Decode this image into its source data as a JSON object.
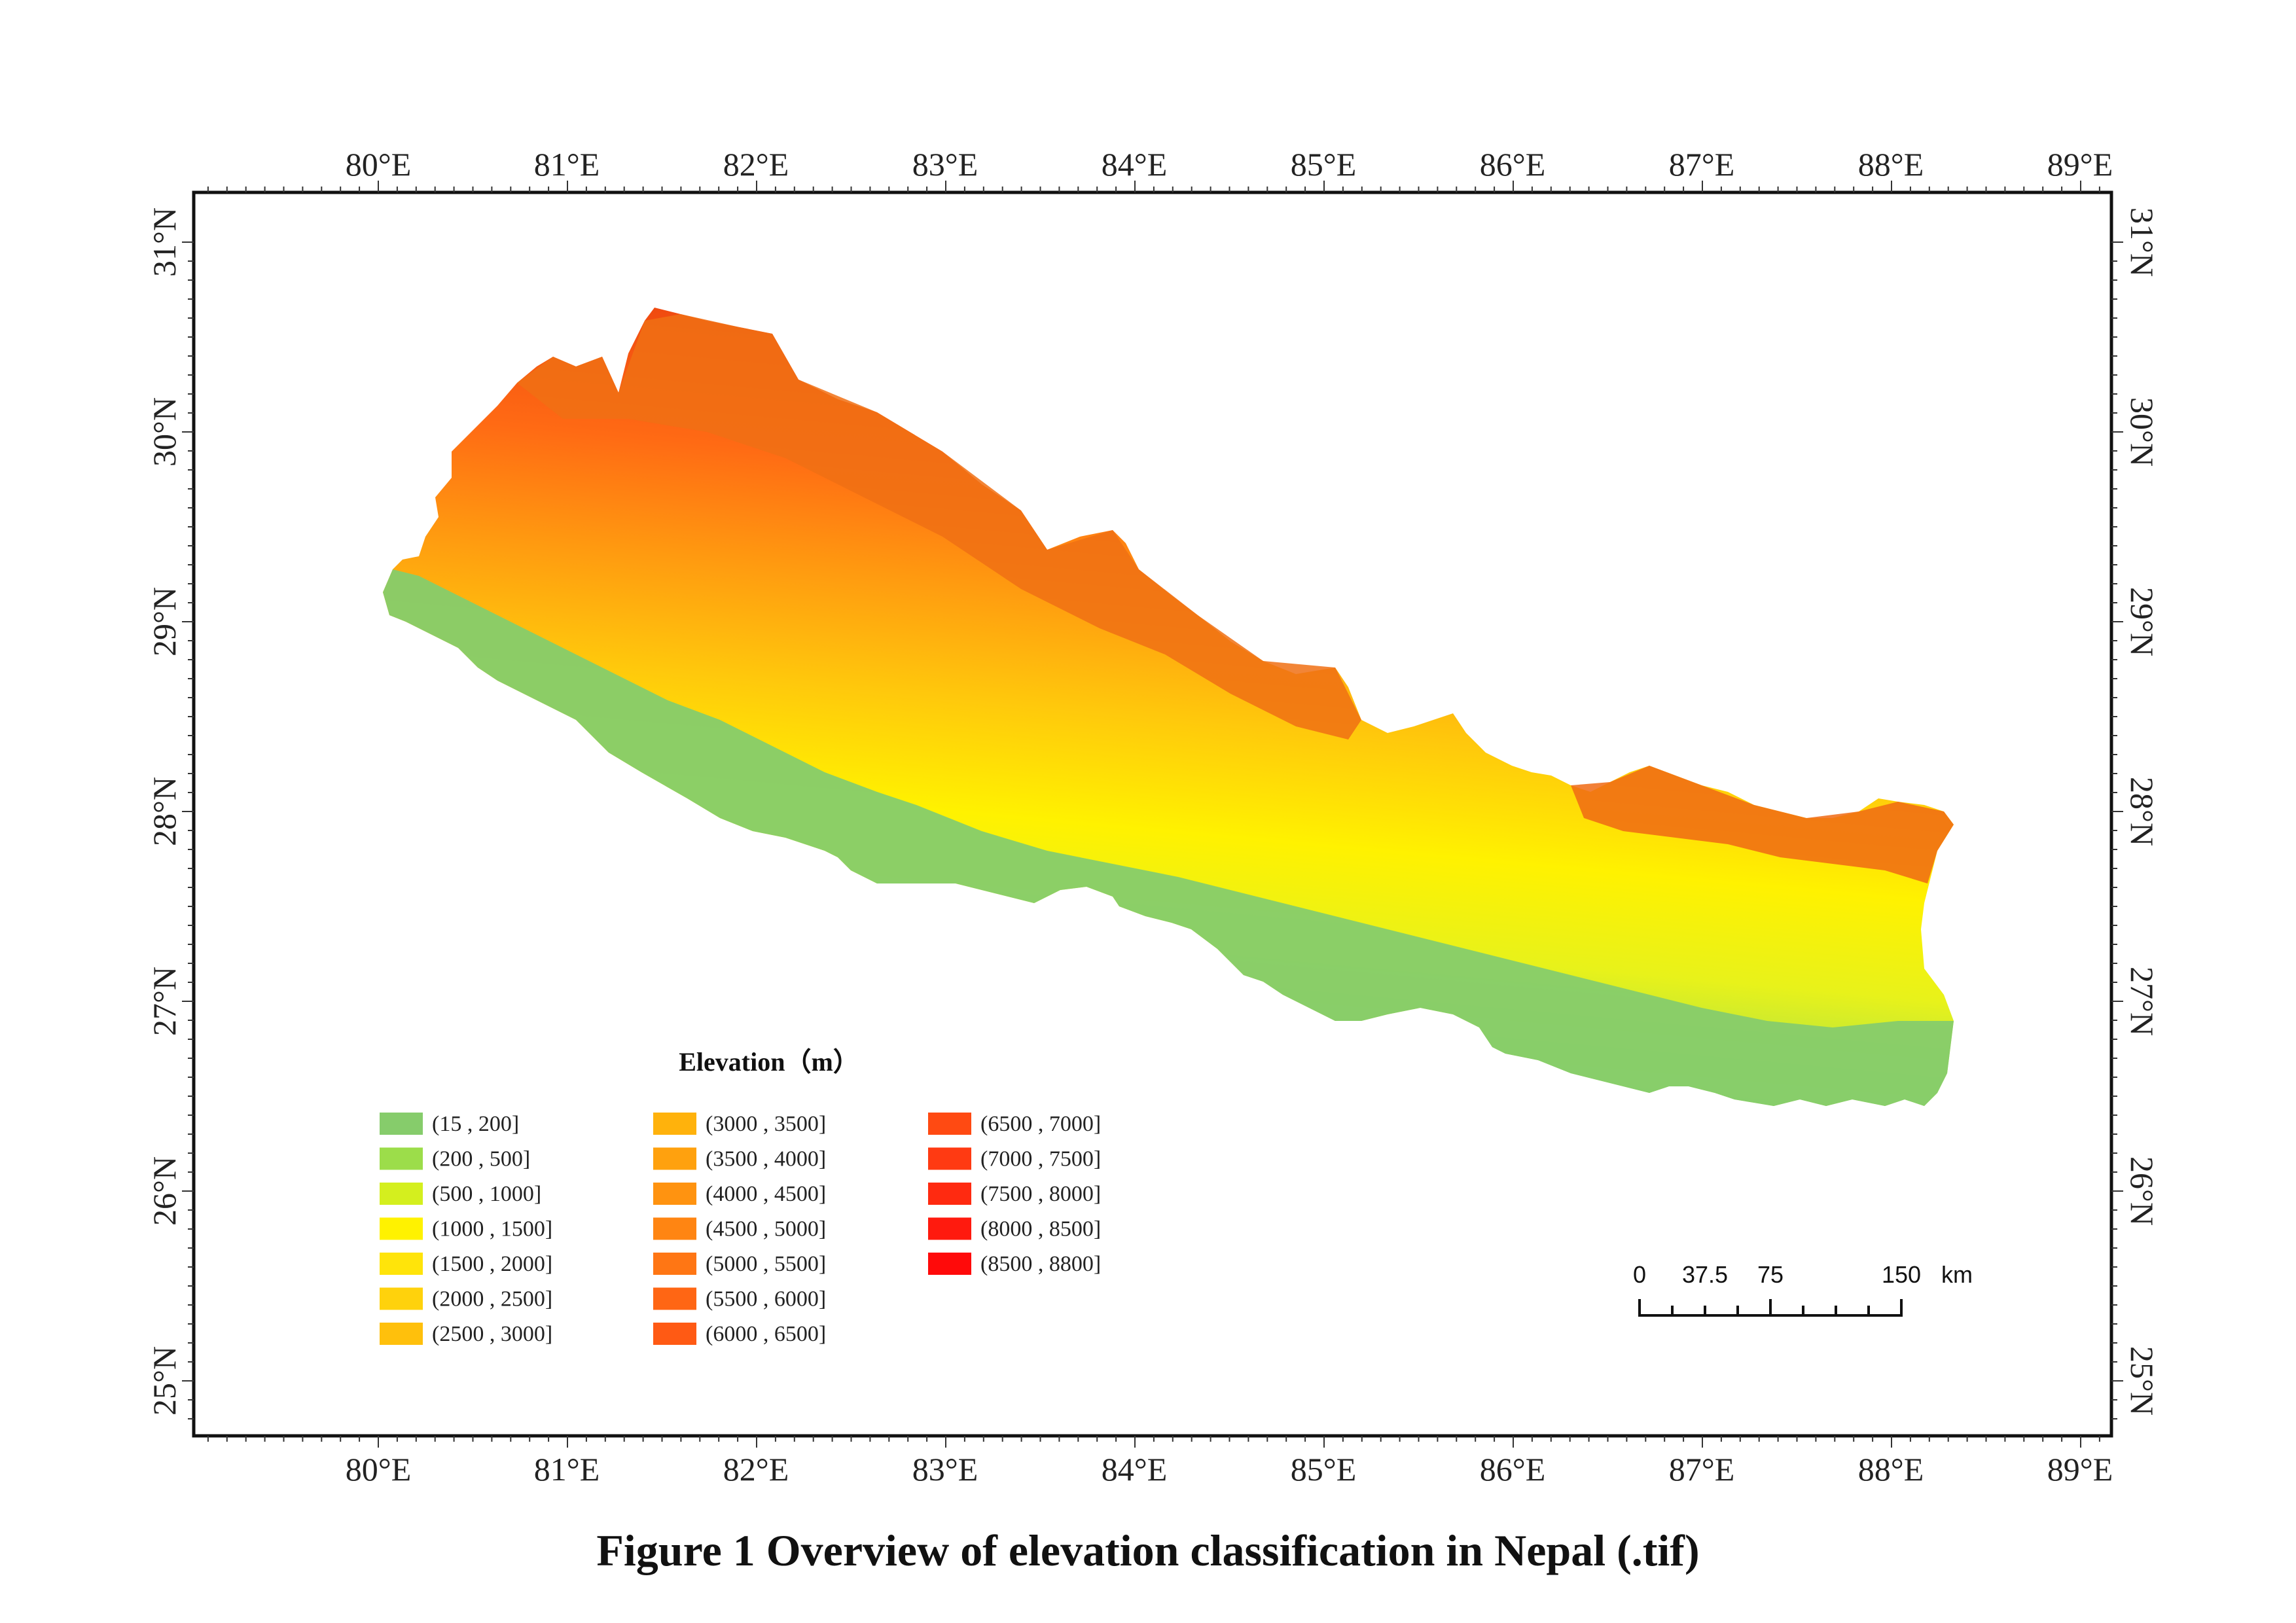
{
  "figure": {
    "caption": "Figure 1  Overview of elevation classification in Nepal (.tif)"
  },
  "map": {
    "x_axis_labels": [
      "80°E",
      "81°E",
      "82°E",
      "83°E",
      "84°E",
      "85°E",
      "86°E",
      "87°E",
      "88°E",
      "89°E"
    ],
    "y_axis_labels": [
      "25°N",
      "26°N",
      "27°N",
      "28°N",
      "29°N",
      "30°N",
      "31°N"
    ],
    "colors": {
      "lowland": "#86cc6b",
      "mid": "#f5ec00",
      "high": "#f07a10",
      "peak": "#e04010"
    }
  },
  "legend": {
    "title": "Elevation（m）",
    "classes": [
      {
        "label": "(15 , 200]",
        "color": "#86cc6b"
      },
      {
        "label": "(200 , 500]",
        "color": "#9cdd4a"
      },
      {
        "label": "(500 , 1000]",
        "color": "#d4ef1e"
      },
      {
        "label": "(1000 , 1500]",
        "color": "#fff200"
      },
      {
        "label": "(1500 , 2000]",
        "color": "#ffe40a"
      },
      {
        "label": "(2000 , 2500]",
        "color": "#ffd20c"
      },
      {
        "label": "(2500 , 3000]",
        "color": "#ffc00c"
      },
      {
        "label": "(3000 , 3500]",
        "color": "#ffb20c"
      },
      {
        "label": "(3500 , 4000]",
        "color": "#ffa10e"
      },
      {
        "label": "(4000 , 4500]",
        "color": "#ff9310"
      },
      {
        "label": "(4500 , 5000]",
        "color": "#ff8512"
      },
      {
        "label": "(5000 , 5500]",
        "color": "#ff7614"
      },
      {
        "label": "(5500 , 6000]",
        "color": "#ff6614"
      },
      {
        "label": "(6000 , 6500]",
        "color": "#ff5a14"
      },
      {
        "label": "(6500 , 7000]",
        "color": "#ff4a12"
      },
      {
        "label": "(7000 , 7500]",
        "color": "#ff3a12"
      },
      {
        "label": "(7500 , 8000]",
        "color": "#ff2a10"
      },
      {
        "label": "(8000 , 8500]",
        "color": "#ff1a0e"
      },
      {
        "label": "(8500 , 8800]",
        "color": "#ff0a0a"
      }
    ]
  },
  "scale_bar": {
    "labels": [
      "0",
      "37.5",
      "75",
      "150"
    ],
    "unit": "km"
  }
}
